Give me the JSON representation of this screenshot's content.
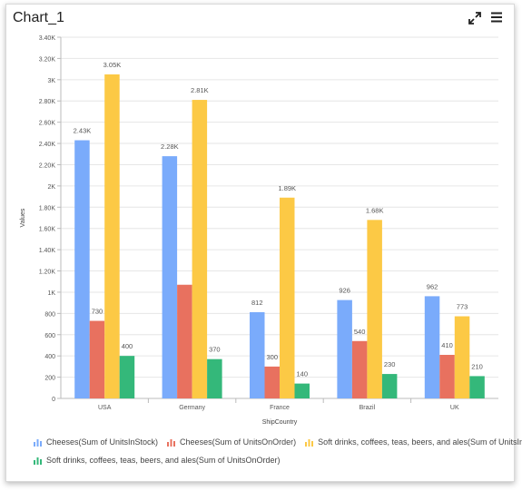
{
  "header": {
    "title": "Chart_1",
    "expand_icon": "expand-icon",
    "menu_icon": "hamburger-menu-icon"
  },
  "chart_data": {
    "type": "bar",
    "categories": [
      "USA",
      "Germany",
      "France",
      "Brazil",
      "UK"
    ],
    "series": [
      {
        "name": "Cheeses(Sum of UnitsInStock)",
        "color": "#7aabfb",
        "values": [
          2430,
          2280,
          812,
          926,
          962
        ],
        "labels": [
          "2.43K",
          "2.28K",
          "812",
          "926",
          "962"
        ]
      },
      {
        "name": "Cheeses(Sum of UnitsOnOrder)",
        "color": "#e8715f",
        "values": [
          730,
          1070,
          300,
          540,
          410
        ],
        "labels": [
          "730",
          "",
          "300",
          "540",
          "410"
        ]
      },
      {
        "name": "Soft drinks, coffees, teas, beers, and ales(Sum of UnitsInStock)",
        "color": "#fcc945",
        "values": [
          3050,
          2810,
          1890,
          1680,
          773
        ],
        "labels": [
          "3.05K",
          "2.81K",
          "1.89K",
          "1.68K",
          "773"
        ]
      },
      {
        "name": "Soft drinks, coffees, teas, beers, and ales(Sum of UnitsOnOrder)",
        "color": "#34b87a",
        "values": [
          400,
          370,
          140,
          230,
          210
        ],
        "labels": [
          "400",
          "370",
          "140",
          "230",
          "210"
        ]
      }
    ],
    "ylim": [
      0,
      3400
    ],
    "yticks": [
      {
        "value": 0,
        "label": "0"
      },
      {
        "value": 200,
        "label": "200"
      },
      {
        "value": 400,
        "label": "400"
      },
      {
        "value": 600,
        "label": "600"
      },
      {
        "value": 800,
        "label": "800"
      },
      {
        "value": 1000,
        "label": "1K"
      },
      {
        "value": 1200,
        "label": "1.20K"
      },
      {
        "value": 1400,
        "label": "1.40K"
      },
      {
        "value": 1600,
        "label": "1.60K"
      },
      {
        "value": 1800,
        "label": "1.80K"
      },
      {
        "value": 2000,
        "label": "2K"
      },
      {
        "value": 2200,
        "label": "2.20K"
      },
      {
        "value": 2400,
        "label": "2.40K"
      },
      {
        "value": 2600,
        "label": "2.60K"
      },
      {
        "value": 2800,
        "label": "2.80K"
      },
      {
        "value": 3000,
        "label": "3K"
      },
      {
        "value": 3200,
        "label": "3.20K"
      },
      {
        "value": 3400,
        "label": "3.40K"
      }
    ],
    "xlabel": "ShipCountry",
    "ylabel": "Values",
    "grid": true,
    "legend_position": "bottom"
  }
}
